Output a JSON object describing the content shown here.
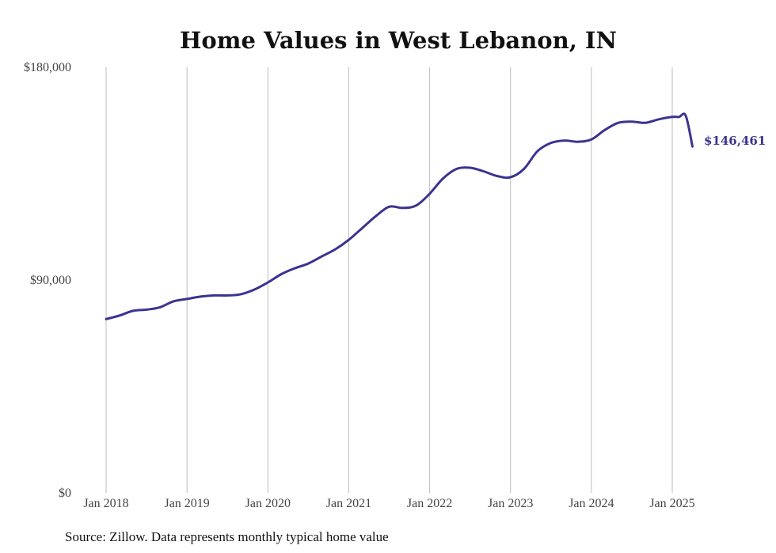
{
  "chart_data": {
    "type": "line",
    "title": "Home Values in West Lebanon, IN",
    "xlabel": "",
    "ylabel": "",
    "ylim": [
      0,
      180000
    ],
    "y_ticks": [
      "$0",
      "$90,000",
      "$180,000"
    ],
    "y_tick_values": [
      0,
      90000,
      180000
    ],
    "x_ticks": [
      "Jan 2018",
      "Jan 2019",
      "Jan 2020",
      "Jan 2021",
      "Jan 2022",
      "Jan 2023",
      "Jan 2024",
      "Jan 2025"
    ],
    "x_tick_values": [
      "2018-01",
      "2019-01",
      "2020-01",
      "2021-01",
      "2022-01",
      "2023-01",
      "2024-01",
      "2025-01"
    ],
    "xlim": [
      "2018-01",
      "2025-04"
    ],
    "grid": "vertical",
    "line_color": "#3b3391",
    "end_label": "$146,461",
    "series": [
      {
        "x": [
          "2018-01",
          "2018-03",
          "2018-05",
          "2018-07",
          "2018-09",
          "2018-11",
          "2019-01",
          "2019-03",
          "2019-05",
          "2019-07",
          "2019-09",
          "2019-11",
          "2020-01",
          "2020-03",
          "2020-05",
          "2020-07",
          "2020-09",
          "2020-11",
          "2021-01",
          "2021-03",
          "2021-05",
          "2021-07",
          "2021-09",
          "2021-11",
          "2022-01",
          "2022-03",
          "2022-05",
          "2022-07",
          "2022-09",
          "2022-11",
          "2023-01",
          "2023-03",
          "2023-05",
          "2023-07",
          "2023-09",
          "2023-11",
          "2024-01",
          "2024-03",
          "2024-05",
          "2024-07",
          "2024-09",
          "2024-11",
          "2025-01",
          "2025-02",
          "2025-03",
          "2025-04"
        ],
        "values": [
          73500,
          75000,
          77000,
          77500,
          78500,
          81000,
          82000,
          83000,
          83500,
          83500,
          84000,
          86000,
          89000,
          92500,
          95000,
          97000,
          100000,
          103000,
          107000,
          112000,
          117000,
          121000,
          120500,
          121500,
          126500,
          133000,
          137000,
          137500,
          136000,
          134000,
          133500,
          137000,
          144500,
          148000,
          149000,
          148500,
          149500,
          153500,
          156500,
          157000,
          156500,
          158000,
          159000,
          159000,
          159500,
          146461
        ]
      }
    ]
  },
  "footer": {
    "source": "Source: Zillow. Data represents monthly typical home value"
  }
}
